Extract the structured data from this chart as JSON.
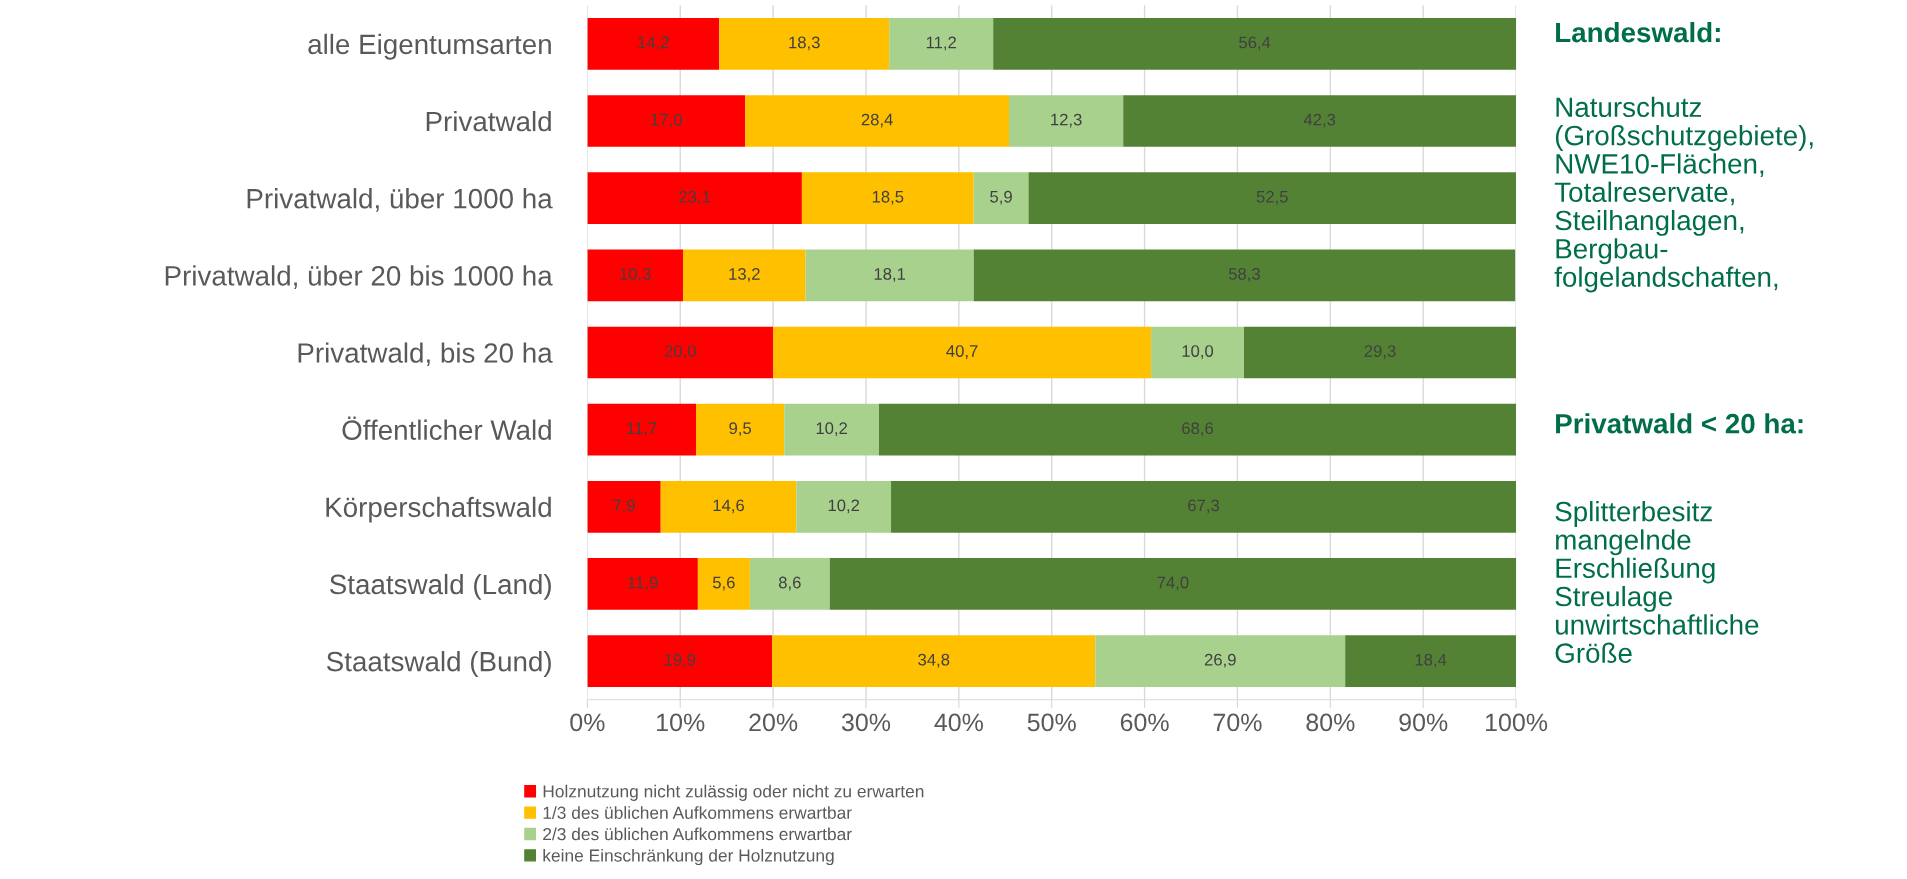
{
  "chart_data": {
    "type": "bar",
    "orientation": "horizontal",
    "stacked": true,
    "categories": [
      "alle Eigentumsarten",
      "Privatwald",
      "Privatwald, über 1000 ha",
      "Privatwald, über 20 bis 1000 ha",
      "Privatwald, bis 20 ha",
      "Öffentlicher Wald",
      "Körperschaftswald",
      "Staatswald (Land)",
      "Staatswald (Bund)"
    ],
    "series": [
      {
        "name": "Holznutzung nicht zulässig oder nicht zu erwarten",
        "color": "#ff0000",
        "values": [
          14.2,
          17.0,
          23.1,
          10.3,
          20.0,
          11.7,
          7.9,
          11.9,
          19.9
        ],
        "value_labels": [
          "14,2",
          "17,0",
          "23,1",
          "10,3",
          "20,0",
          "11,7",
          "7,9",
          "11,9",
          "19,9"
        ]
      },
      {
        "name": "1/3 des üblichen Aufkommens erwartbar",
        "color": "#ffc000",
        "values": [
          18.3,
          28.4,
          18.5,
          13.2,
          40.7,
          9.5,
          14.6,
          5.6,
          34.8
        ],
        "value_labels": [
          "18,3",
          "28,4",
          "18,5",
          "13,2",
          "40,7",
          "9,5",
          "14,6",
          "5,6",
          "34,8"
        ]
      },
      {
        "name": "2/3 des üblichen Aufkommens erwartbar",
        "color": "#a9d18e",
        "values": [
          11.2,
          12.3,
          5.9,
          18.1,
          10.0,
          10.2,
          10.2,
          8.6,
          26.9
        ],
        "value_labels": [
          "11,2",
          "12,3",
          "5,9",
          "18,1",
          "10,0",
          "10,2",
          "10,2",
          "8,6",
          "26,9"
        ]
      },
      {
        "name": "keine Einschränkung der Holznutzung",
        "color": "#548235",
        "values": [
          56.4,
          42.3,
          52.5,
          58.3,
          29.3,
          68.6,
          67.3,
          74.0,
          18.4
        ],
        "value_labels": [
          "56,4",
          "42,3",
          "52,5",
          "58,3",
          "29,3",
          "68,6",
          "67,3",
          "74,0",
          "18,4"
        ]
      }
    ],
    "xlim": [
      0,
      100
    ],
    "xticks": [
      {
        "value": 0,
        "label": "0%"
      },
      {
        "value": 10,
        "label": "10%"
      },
      {
        "value": 20,
        "label": "20%"
      },
      {
        "value": 30,
        "label": "30%"
      },
      {
        "value": 40,
        "label": "40%"
      },
      {
        "value": 50,
        "label": "50%"
      },
      {
        "value": 60,
        "label": "60%"
      },
      {
        "value": 70,
        "label": "70%"
      },
      {
        "value": 80,
        "label": "80%"
      },
      {
        "value": 90,
        "label": "90%"
      },
      {
        "value": 100,
        "label": "100%"
      }
    ],
    "grid": "x",
    "legend": "bottom",
    "annotations": [
      "Landeswald:",
      "Naturschutz\n(Großschutzgebiete),\nNWE10-Flächen,\nTotalreservate,\nSteilhanglagen,\nBergbau-\nfolgelandschaften,",
      "Privatwald < 20 ha:",
      "Splitterbesitz\nmangelnde\nErschließung\nStreulage\nunwirtschaftliche\nGröße"
    ]
  }
}
